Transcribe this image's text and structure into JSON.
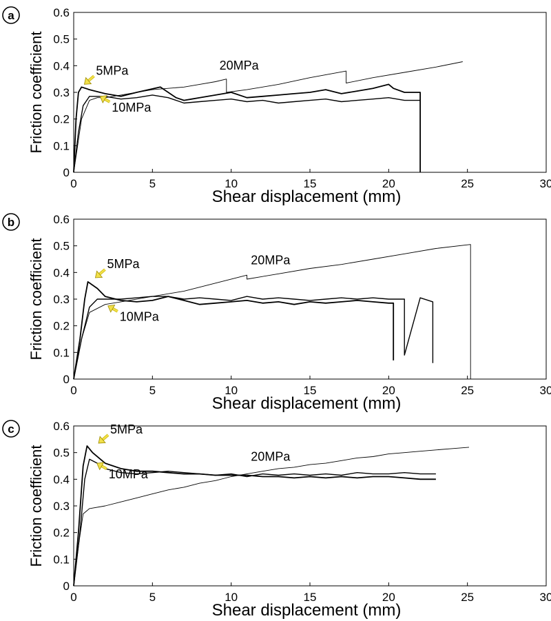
{
  "chart_data": [
    {
      "type": "line",
      "panel_label": "a",
      "xlabel": "Shear displacement (mm)",
      "ylabel": "Friction coefficient",
      "xlim": [
        0,
        30
      ],
      "ylim": [
        0,
        0.6
      ],
      "xticks": [
        "0",
        "5",
        "10",
        "15",
        "20",
        "25",
        "30"
      ],
      "yticks": [
        "0",
        "0.1",
        "0.2",
        "0.3",
        "0.4",
        "0.5",
        "0.6"
      ],
      "grid": false,
      "annotations": [
        {
          "text": "5MPa",
          "x": 0.5,
          "y": 0.325,
          "arrow": true
        },
        {
          "text": "10MPa",
          "x": 1.5,
          "y": 0.29,
          "arrow": true
        },
        {
          "text": "20MPa",
          "x": 10.5,
          "y": 0.385,
          "arrow": false
        }
      ],
      "series": [
        {
          "name": "5MPa",
          "x": [
            0,
            0.15,
            0.3,
            0.5,
            1,
            2,
            3,
            4,
            5.5,
            6,
            6.5,
            7,
            7.5,
            8,
            9,
            10,
            11,
            12,
            13,
            14,
            15,
            16,
            17,
            18,
            19,
            20,
            20.3,
            21,
            22,
            22,
            22
          ],
          "y": [
            0,
            0.2,
            0.3,
            0.32,
            0.31,
            0.295,
            0.285,
            0.3,
            0.32,
            0.3,
            0.28,
            0.27,
            0.275,
            0.28,
            0.29,
            0.3,
            0.28,
            0.285,
            0.29,
            0.295,
            0.3,
            0.31,
            0.295,
            0.305,
            0.315,
            0.33,
            0.315,
            0.3,
            0.3,
            0.15,
            0
          ]
        },
        {
          "name": "10MPa",
          "x": [
            0,
            0.3,
            0.6,
            1,
            2,
            3,
            4,
            5,
            6,
            7,
            8,
            9,
            10,
            11,
            12,
            13,
            14,
            15,
            16,
            17,
            18,
            19,
            20,
            21,
            22
          ],
          "y": [
            0,
            0.15,
            0.25,
            0.285,
            0.285,
            0.275,
            0.28,
            0.29,
            0.28,
            0.26,
            0.265,
            0.27,
            0.275,
            0.265,
            0.27,
            0.26,
            0.265,
            0.27,
            0.275,
            0.265,
            0.27,
            0.275,
            0.28,
            0.27,
            0.27
          ]
        },
        {
          "name": "20MPa",
          "x": [
            0,
            0.5,
            1,
            1.5,
            2,
            3,
            4,
            5,
            6,
            7,
            8,
            9,
            9.7,
            9.7,
            11,
            13,
            15,
            17.3,
            17.3,
            19,
            21,
            23,
            24.7
          ],
          "y": [
            0,
            0.2,
            0.27,
            0.28,
            0.28,
            0.29,
            0.3,
            0.31,
            0.315,
            0.32,
            0.33,
            0.34,
            0.35,
            0.3,
            0.31,
            0.33,
            0.355,
            0.38,
            0.335,
            0.355,
            0.375,
            0.395,
            0.415
          ]
        }
      ]
    },
    {
      "type": "line",
      "panel_label": "b",
      "xlabel": "Shear displacement (mm)",
      "ylabel": "Friction coefficient",
      "xlim": [
        0,
        30
      ],
      "ylim": [
        0,
        0.6
      ],
      "xticks": [
        "0",
        "5",
        "10",
        "15",
        "20",
        "25",
        "30"
      ],
      "yticks": [
        "0",
        "0.1",
        "0.2",
        "0.3",
        "0.4",
        "0.5",
        "0.6"
      ],
      "grid": false,
      "annotations": [
        {
          "text": "5MPa",
          "x": 1.2,
          "y": 0.375,
          "arrow": true
        },
        {
          "text": "10MPa",
          "x": 2.0,
          "y": 0.28,
          "arrow": true
        },
        {
          "text": "20MPa",
          "x": 12.5,
          "y": 0.43,
          "arrow": false
        }
      ],
      "series": [
        {
          "name": "5MPa",
          "x": [
            0,
            0.4,
            0.7,
            0.9,
            1.5,
            2,
            3,
            4,
            5,
            6,
            7,
            8,
            9,
            10,
            11,
            12,
            13,
            14,
            15,
            16,
            17,
            18,
            19,
            20,
            20.3,
            20.3
          ],
          "y": [
            0,
            0.15,
            0.3,
            0.365,
            0.34,
            0.31,
            0.295,
            0.29,
            0.295,
            0.31,
            0.295,
            0.28,
            0.285,
            0.29,
            0.295,
            0.285,
            0.29,
            0.28,
            0.29,
            0.285,
            0.29,
            0.295,
            0.29,
            0.285,
            0.285,
            0.07
          ]
        },
        {
          "name": "10MPa",
          "x": [
            0,
            0.5,
            1,
            1.5,
            2,
            3,
            4,
            5,
            6,
            7,
            8,
            9,
            10,
            11,
            12,
            13,
            14,
            15,
            16,
            17,
            18,
            19,
            20,
            21,
            21,
            22,
            22.8,
            22.8
          ],
          "y": [
            0,
            0.15,
            0.27,
            0.3,
            0.3,
            0.3,
            0.305,
            0.31,
            0.31,
            0.3,
            0.305,
            0.3,
            0.295,
            0.31,
            0.3,
            0.305,
            0.3,
            0.295,
            0.3,
            0.305,
            0.3,
            0.305,
            0.3,
            0.3,
            0.09,
            0.305,
            0.29,
            0.06
          ]
        },
        {
          "name": "20MPa",
          "x": [
            0,
            0.5,
            1,
            2,
            3,
            5,
            7,
            9,
            11,
            11,
            13,
            15,
            17,
            19,
            21,
            23,
            25.2,
            25.2
          ],
          "y": [
            0,
            0.15,
            0.25,
            0.28,
            0.29,
            0.31,
            0.33,
            0.36,
            0.39,
            0.375,
            0.395,
            0.415,
            0.43,
            0.45,
            0.47,
            0.49,
            0.505,
            0
          ]
        }
      ]
    },
    {
      "type": "line",
      "panel_label": "c",
      "xlabel": "Shear displacement (mm)",
      "ylabel": "Friction coefficient",
      "xlim": [
        0,
        30
      ],
      "ylim": [
        0,
        0.6
      ],
      "xticks": [
        "0",
        "5",
        "10",
        "15",
        "20",
        "25",
        "30"
      ],
      "yticks": [
        "0",
        "0.1",
        "0.2",
        "0.3",
        "0.4",
        "0.5",
        "0.6"
      ],
      "grid": false,
      "annotations": [
        {
          "text": "5MPa",
          "x": 1.4,
          "y": 0.53,
          "arrow": true
        },
        {
          "text": "10MPa",
          "x": 1.3,
          "y": 0.465,
          "arrow": true
        },
        {
          "text": "20MPa",
          "x": 12.5,
          "y": 0.47,
          "arrow": false
        }
      ],
      "series": [
        {
          "name": "5MPa",
          "x": [
            0,
            0.3,
            0.6,
            0.85,
            1.2,
            2,
            3,
            4,
            5,
            6,
            7,
            8,
            9,
            10,
            11,
            12,
            13,
            14,
            15,
            16,
            17,
            18,
            19,
            20,
            21,
            22,
            23
          ],
          "y": [
            0,
            0.2,
            0.45,
            0.525,
            0.5,
            0.46,
            0.44,
            0.43,
            0.43,
            0.425,
            0.42,
            0.42,
            0.415,
            0.415,
            0.415,
            0.41,
            0.41,
            0.405,
            0.41,
            0.405,
            0.41,
            0.405,
            0.41,
            0.41,
            0.405,
            0.4,
            0.4
          ]
        },
        {
          "name": "10MPa",
          "x": [
            0,
            0.4,
            0.7,
            1,
            1.5,
            2,
            3,
            4,
            5,
            6,
            7,
            8,
            9,
            10,
            11,
            12,
            13,
            14,
            15,
            16,
            17,
            18,
            19,
            20,
            21,
            22,
            23
          ],
          "y": [
            0,
            0.2,
            0.4,
            0.475,
            0.46,
            0.44,
            0.425,
            0.42,
            0.425,
            0.43,
            0.425,
            0.42,
            0.415,
            0.42,
            0.41,
            0.42,
            0.415,
            0.42,
            0.415,
            0.42,
            0.415,
            0.425,
            0.42,
            0.42,
            0.425,
            0.42,
            0.42
          ]
        },
        {
          "name": "20MPa",
          "x": [
            0,
            0.3,
            0.6,
            1,
            2,
            3,
            4,
            5,
            6,
            7,
            8,
            9,
            10,
            11,
            12,
            13,
            14,
            15,
            16,
            17,
            18,
            19,
            20,
            21,
            22,
            23,
            24,
            25.1
          ],
          "y": [
            0,
            0.15,
            0.27,
            0.29,
            0.3,
            0.315,
            0.33,
            0.345,
            0.36,
            0.37,
            0.385,
            0.395,
            0.41,
            0.42,
            0.43,
            0.44,
            0.445,
            0.455,
            0.46,
            0.47,
            0.48,
            0.485,
            0.495,
            0.5,
            0.505,
            0.51,
            0.515,
            0.52
          ]
        }
      ]
    }
  ]
}
